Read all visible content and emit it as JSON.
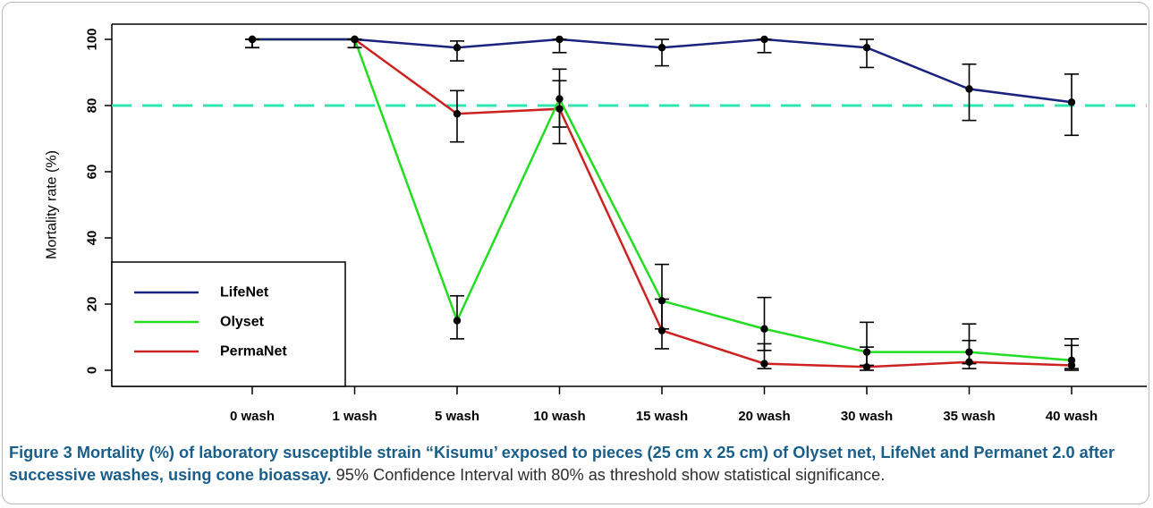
{
  "chart_data": {
    "type": "line",
    "categories": [
      "0 wash",
      "1 wash",
      "5 wash",
      "10 wash",
      "15 wash",
      "20 wash",
      "30 wash",
      "35 wash",
      "40 wash"
    ],
    "ylabel": "Mortality rate (%)",
    "xlabel": "",
    "ylim": [
      0,
      100
    ],
    "yticks": [
      0,
      20,
      40,
      60,
      80,
      100
    ],
    "threshold": {
      "value": 80,
      "color": "#2ee6b0"
    },
    "grid": false,
    "legend": "bottom-left",
    "series": [
      {
        "name": "LifeNet",
        "color": "#1a237e",
        "values": [
          100,
          100,
          97.5,
          100,
          97.5,
          100,
          97.5,
          85,
          81
        ],
        "ci_low": [
          97.5,
          97.5,
          93.5,
          96,
          92,
          96,
          91.5,
          75.5,
          71
        ],
        "ci_high": [
          100,
          100,
          99.5,
          100,
          100,
          100,
          100,
          92.5,
          89.5
        ]
      },
      {
        "name": "Olyset",
        "color": "#22dd22",
        "values": [
          100,
          100,
          15,
          82,
          21,
          12.5,
          5.5,
          5.5,
          3
        ],
        "ci_low": [
          97.5,
          97.5,
          9.5,
          73.5,
          12.5,
          6,
          1.5,
          2,
          0.5
        ],
        "ci_high": [
          100,
          100,
          22.5,
          91,
          32,
          22,
          14.5,
          14,
          9.5
        ]
      },
      {
        "name": "PermaNet",
        "color": "#cc2222",
        "values": [
          100,
          100,
          77.5,
          79,
          12,
          2,
          1,
          2.5,
          1.5
        ],
        "ci_low": [
          97.5,
          97.5,
          69,
          68.5,
          6.5,
          0.5,
          0,
          0.5,
          0
        ],
        "ci_high": [
          100,
          100,
          84.5,
          87.5,
          21.5,
          8,
          7,
          9,
          7.5
        ]
      }
    ]
  },
  "caption": {
    "label": "Figure 3",
    "title": "Mortality (%) of laboratory susceptible strain “Kisumu’ exposed to pieces (25 cm x 25 cm) of Olyset net, LifeNet and Permanet 2.0 after successive washes, using cone bioassay.",
    "note": "95% Confidence Interval with 80% as threshold show statistical significance."
  }
}
